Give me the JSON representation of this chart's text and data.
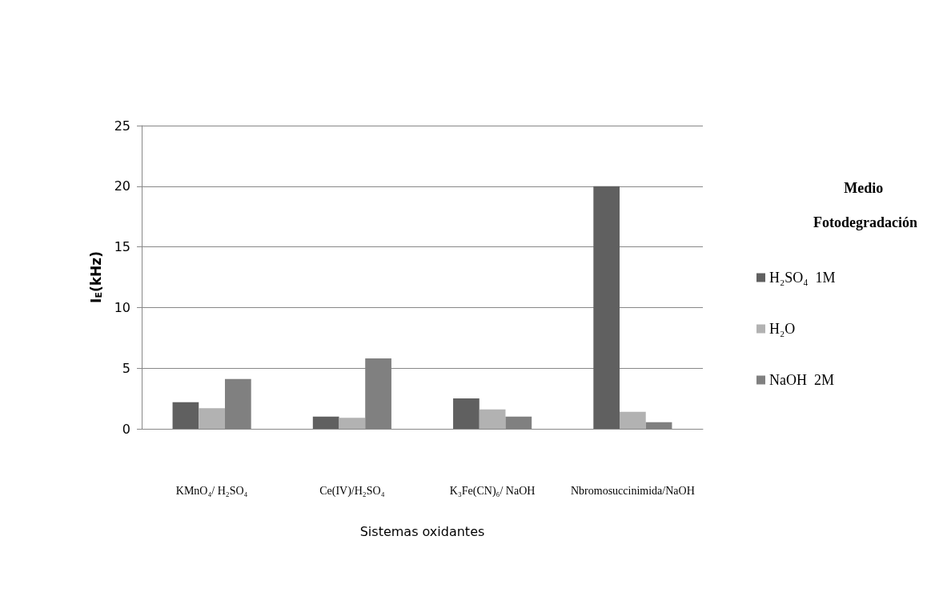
{
  "chart_data": {
    "type": "bar",
    "categories": [
      "KMnO₄/ H₂SO₄",
      "Ce(IV)/H₂SO₄",
      "K₃Fe(CN)₆/ NaOH",
      "Nbromosuccinimida/NaOH"
    ],
    "series": [
      {
        "name": "H₂SO₄  1M",
        "color": "#606060",
        "values": [
          2.2,
          1.0,
          2.5,
          20
        ]
      },
      {
        "name": "H₂O",
        "color": "#b2b2b2",
        "values": [
          1.7,
          0.9,
          1.6,
          1.4
        ]
      },
      {
        "name": "NaOH  2M",
        "color": "#808080",
        "values": [
          4.1,
          5.8,
          1.0,
          0.55
        ]
      }
    ],
    "xlabel": "Sistemas oxidantes",
    "ylabel": "I$_{E}$(kHz)",
    "legend_title": "Medio Fotodegradación",
    "ylim": [
      0,
      25
    ],
    "yticks": [
      0,
      5,
      10,
      15,
      20,
      25
    ],
    "grid": "y",
    "legend": "right"
  }
}
